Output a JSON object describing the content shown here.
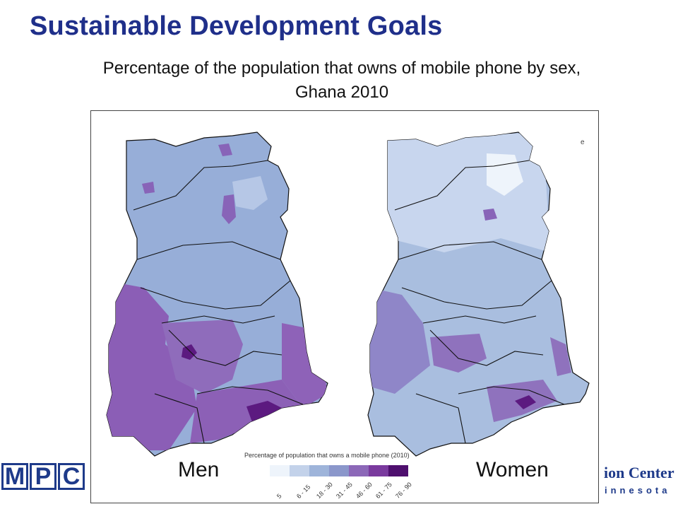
{
  "title": "Sustainable Development Goals",
  "subtitle_line1": "Percentage of the population that owns of mobile phone by sex,",
  "subtitle_line2": "Ghana 2010",
  "panels": {
    "men_label": "Men",
    "women_label": "Women"
  },
  "legend": {
    "title": "Percentage of population that owns a mobile phone (2010)",
    "classes": [
      {
        "label": "5",
        "color": "#eef4fb"
      },
      {
        "label": "6 - 15",
        "color": "#c3d2ea"
      },
      {
        "label": "18 - 30",
        "color": "#9eb4da"
      },
      {
        "label": "31 - 45",
        "color": "#8b97cb"
      },
      {
        "label": "46 - 60",
        "color": "#8c68b8"
      },
      {
        "label": "61 - 75",
        "color": "#7a3a9e"
      },
      {
        "label": "76 - 90",
        "color": "#4e0f6e"
      }
    ]
  },
  "logo_left": [
    "M",
    "P",
    "C"
  ],
  "logo_right": {
    "line1": "ion Center",
    "line2": "innesota"
  },
  "stray_text": "e"
}
